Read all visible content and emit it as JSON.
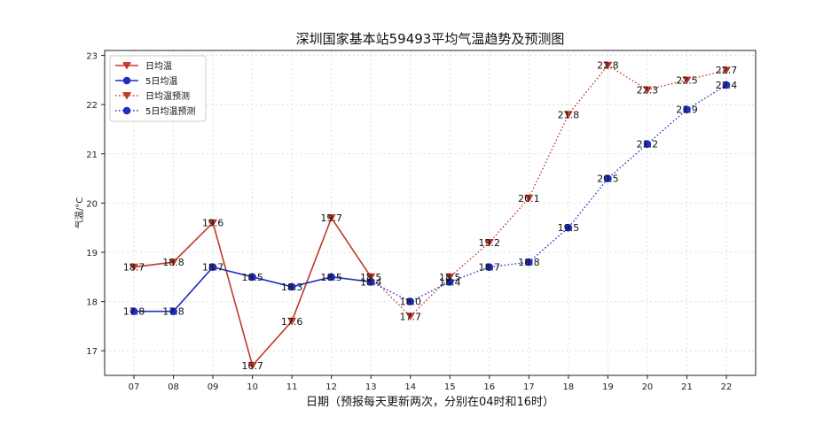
{
  "chart_data": {
    "type": "line",
    "title": "深圳国家基本站59493平均气温趋势及预测图",
    "xlabel": "日期（预报每天更新两次，分别在04时和16时）",
    "ylabel": "气温/°C",
    "categories": [
      "07",
      "08",
      "09",
      "10",
      "11",
      "12",
      "13",
      "14",
      "15",
      "16",
      "17",
      "18",
      "19",
      "20",
      "21",
      "22"
    ],
    "ylim": [
      16.5,
      23.1
    ],
    "yticks": [
      17,
      18,
      19,
      20,
      21,
      22,
      23
    ],
    "grid": true,
    "legend_position": "top-left",
    "series": [
      {
        "name": "日均温",
        "color": "#c0392b",
        "line_style": "solid",
        "marker": "triangle-down",
        "points": [
          {
            "x": "07",
            "y": 18.7
          },
          {
            "x": "08",
            "y": 18.8
          },
          {
            "x": "09",
            "y": 19.6
          },
          {
            "x": "10",
            "y": 16.7
          },
          {
            "x": "11",
            "y": 17.6
          },
          {
            "x": "12",
            "y": 19.7
          },
          {
            "x": "13",
            "y": 18.5
          }
        ],
        "labels": [
          "18.7",
          "18.8",
          "19.6",
          "16.7",
          "17.6",
          "19.7",
          "18.5"
        ]
      },
      {
        "name": "5日均温",
        "color": "#1f2fbf",
        "line_style": "solid",
        "marker": "circle",
        "points": [
          {
            "x": "07",
            "y": 17.8
          },
          {
            "x": "08",
            "y": 17.8
          },
          {
            "x": "09",
            "y": 18.7
          },
          {
            "x": "10",
            "y": 18.5
          },
          {
            "x": "11",
            "y": 18.3
          },
          {
            "x": "12",
            "y": 18.5
          },
          {
            "x": "13",
            "y": 18.4
          }
        ],
        "labels": [
          "17.8",
          "17.8",
          "18.7",
          "18.5",
          "18.3",
          "18.5",
          "18.4"
        ]
      },
      {
        "name": "日均温预测",
        "color": "#c0392b",
        "line_style": "dotted",
        "marker": "triangle-down",
        "points": [
          {
            "x": "13",
            "y": 18.5
          },
          {
            "x": "14",
            "y": 17.7
          },
          {
            "x": "15",
            "y": 18.5
          },
          {
            "x": "16",
            "y": 19.2
          },
          {
            "x": "17",
            "y": 20.1
          },
          {
            "x": "18",
            "y": 21.8
          },
          {
            "x": "19",
            "y": 22.8
          },
          {
            "x": "20",
            "y": 22.3
          },
          {
            "x": "21",
            "y": 22.5
          },
          {
            "x": "22",
            "y": 22.7
          }
        ],
        "labels": [
          "",
          "17.7",
          "18.5",
          "19.2",
          "20.1",
          "21.8",
          "22.8",
          "22.3",
          "22.5",
          "22.7"
        ]
      },
      {
        "name": "5日均温预测",
        "color": "#1f2fbf",
        "line_style": "dotted",
        "marker": "circle",
        "points": [
          {
            "x": "13",
            "y": 18.4
          },
          {
            "x": "14",
            "y": 18.0
          },
          {
            "x": "15",
            "y": 18.4
          },
          {
            "x": "16",
            "y": 18.7
          },
          {
            "x": "17",
            "y": 18.8
          },
          {
            "x": "18",
            "y": 19.5
          },
          {
            "x": "19",
            "y": 20.5
          },
          {
            "x": "20",
            "y": 21.2
          },
          {
            "x": "21",
            "y": 21.9
          },
          {
            "x": "22",
            "y": 22.4
          }
        ],
        "labels": [
          "",
          "18.0",
          "18.4",
          "18.7",
          "18.8",
          "19.5",
          "20.5",
          "21.2",
          "21.9",
          "22.4"
        ]
      }
    ]
  }
}
